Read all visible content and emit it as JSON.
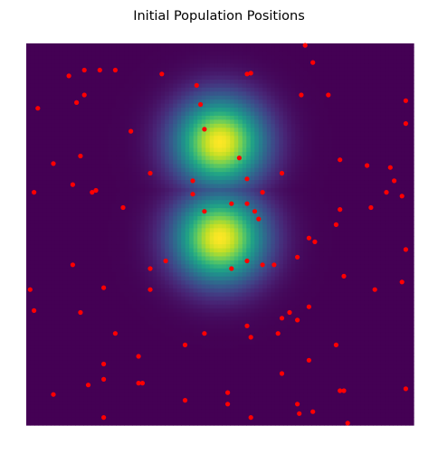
{
  "chart_data": {
    "type": "scatter",
    "title": "Initial Population Positions",
    "xlabel": "",
    "ylabel": "",
    "axes_visible": false,
    "grid": false,
    "xlim": [
      0,
      100
    ],
    "ylim": [
      0,
      100
    ],
    "background": {
      "type": "heatmap",
      "colormap": "viridis",
      "grid_resolution": 95,
      "description_of_peaks": [
        {
          "x": 50,
          "y": 74,
          "sigma_x": 8,
          "sigma_y": 8,
          "amplitude": 1.0
        },
        {
          "x": 50,
          "y": 49,
          "sigma_x": 8,
          "sigma_y": 8,
          "amplitude": 1.0
        }
      ]
    },
    "series": [
      {
        "marker_color": "#ff0000",
        "points": [
          [
            72,
            99.5
          ],
          [
            74,
            95
          ],
          [
            15,
            93
          ],
          [
            11,
            91.5
          ],
          [
            19,
            93
          ],
          [
            23,
            93
          ],
          [
            35,
            92
          ],
          [
            57,
            92
          ],
          [
            58,
            92.2
          ],
          [
            44,
            89
          ],
          [
            15,
            86.5
          ],
          [
            13,
            84.5
          ],
          [
            71,
            86.5
          ],
          [
            78,
            86.5
          ],
          [
            45,
            84
          ],
          [
            98,
            85
          ],
          [
            3,
            83
          ],
          [
            98,
            79
          ],
          [
            27,
            77
          ],
          [
            46,
            77.5
          ],
          [
            55,
            70
          ],
          [
            14,
            70.5
          ],
          [
            7,
            68.5
          ],
          [
            81,
            69.5
          ],
          [
            88,
            68
          ],
          [
            94,
            67.5
          ],
          [
            32,
            66
          ],
          [
            66,
            66
          ],
          [
            57,
            64.5
          ],
          [
            43,
            64
          ],
          [
            95,
            64
          ],
          [
            12,
            63
          ],
          [
            18,
            61.5
          ],
          [
            17,
            61
          ],
          [
            43,
            60.5
          ],
          [
            61,
            61
          ],
          [
            93,
            61
          ],
          [
            97,
            60
          ],
          [
            2,
            61
          ],
          [
            53,
            58
          ],
          [
            57,
            58
          ],
          [
            59,
            56
          ],
          [
            25,
            57
          ],
          [
            46,
            56
          ],
          [
            60,
            54
          ],
          [
            81,
            56.5
          ],
          [
            89,
            57
          ],
          [
            80,
            52.5
          ],
          [
            73,
            49
          ],
          [
            74.5,
            48
          ],
          [
            98,
            46
          ],
          [
            70,
            44
          ],
          [
            57,
            43
          ],
          [
            36,
            43
          ],
          [
            64,
            42
          ],
          [
            61,
            42
          ],
          [
            12,
            42
          ],
          [
            32,
            41
          ],
          [
            53,
            41
          ],
          [
            82,
            39
          ],
          [
            1,
            35.5
          ],
          [
            20,
            36
          ],
          [
            32,
            35.5
          ],
          [
            90,
            35.5
          ],
          [
            97,
            37.5
          ],
          [
            73,
            31
          ],
          [
            68,
            29.5
          ],
          [
            66,
            28
          ],
          [
            70,
            27.5
          ],
          [
            2,
            30
          ],
          [
            14,
            29.5
          ],
          [
            57,
            26
          ],
          [
            46,
            24
          ],
          [
            23,
            24
          ],
          [
            65,
            24
          ],
          [
            58,
            23
          ],
          [
            80,
            21
          ],
          [
            41,
            21
          ],
          [
            29,
            18
          ],
          [
            20,
            16
          ],
          [
            73,
            17
          ],
          [
            66,
            13.5
          ],
          [
            20,
            12
          ],
          [
            29,
            11
          ],
          [
            30,
            11
          ],
          [
            16,
            10.5
          ],
          [
            98,
            9.5
          ],
          [
            81,
            9
          ],
          [
            82,
            9
          ],
          [
            52,
            8.5
          ],
          [
            7,
            8
          ],
          [
            41,
            6.5
          ],
          [
            52,
            5.5
          ],
          [
            70,
            5.5
          ],
          [
            70.5,
            3
          ],
          [
            74,
            3.5
          ],
          [
            20,
            2
          ],
          [
            58,
            2
          ],
          [
            83,
            0.5
          ]
        ]
      }
    ]
  }
}
